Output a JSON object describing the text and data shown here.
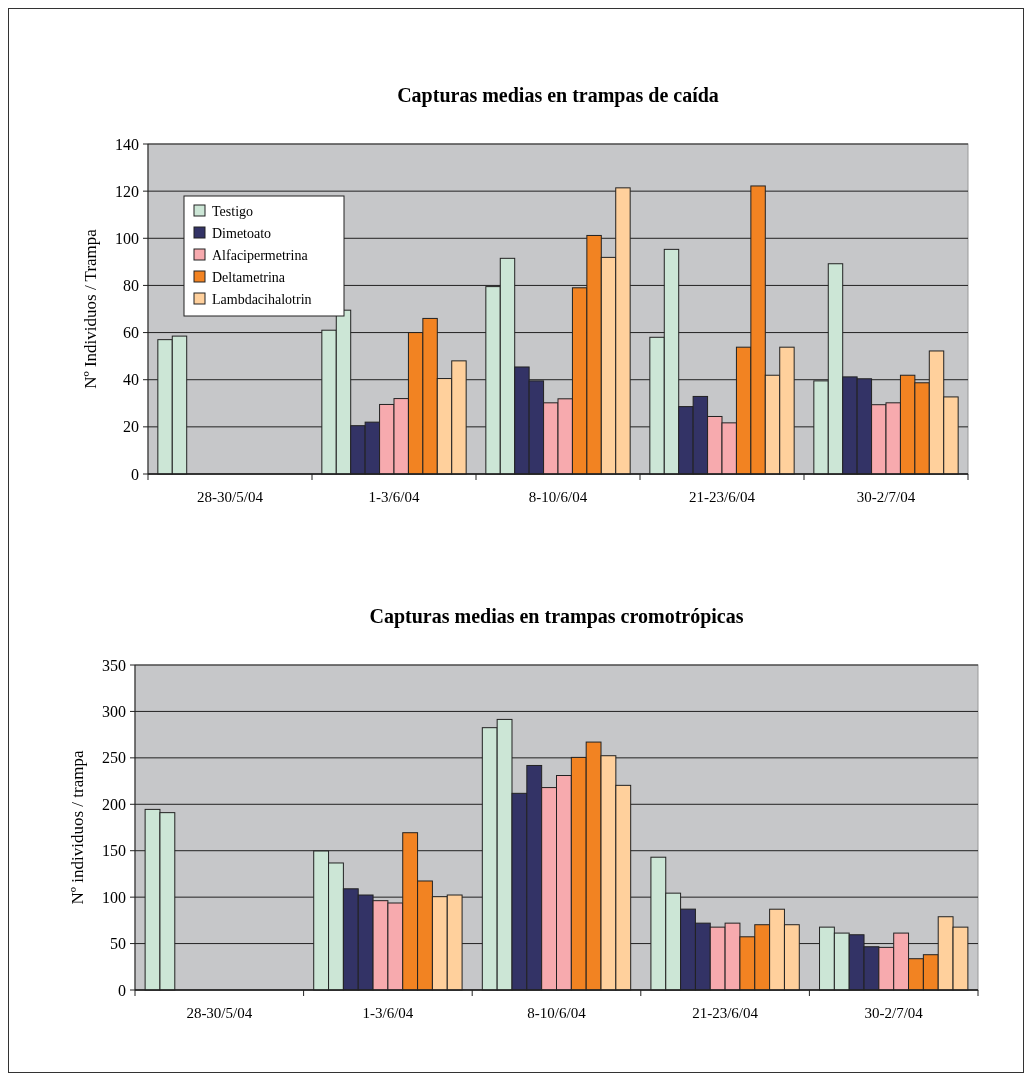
{
  "chart_data": [
    {
      "type": "bar",
      "title": "Capturas medias en trampas de caída",
      "ylabel": "Nº Individuos / Trampa",
      "categories": [
        "28-30/5/04",
        "1-3/6/04",
        "8-10/6/04",
        "21-23/6/04",
        "30-2/7/04"
      ],
      "ylim": [
        0,
        140
      ],
      "yticks": [
        0,
        20,
        40,
        60,
        80,
        100,
        120,
        140
      ],
      "grid": "y",
      "legend": "top left",
      "series": [
        {
          "name": "Testigo",
          "color": "#cce6d6",
          "values": [
            57,
            61,
            79.5,
            58,
            39.5
          ]
        },
        {
          "color": "#cce6d6",
          "values": [
            58.5,
            69.5,
            91.5,
            95.3,
            89.2
          ]
        },
        {
          "name": "Dimetoato",
          "color": "#333366",
          "values": [
            null,
            20.5,
            45.4,
            28.6,
            41.2
          ]
        },
        {
          "color": "#333366",
          "values": [
            null,
            22,
            39.5,
            32.9,
            40.4
          ]
        },
        {
          "name": "Alfacipermetrina",
          "color": "#f7aaae",
          "values": [
            null,
            29.5,
            30.2,
            24.4,
            29.4
          ]
        },
        {
          "color": "#f7aaae",
          "values": [
            null,
            32,
            31.9,
            21.7,
            30.2
          ]
        },
        {
          "name": "Deltametrina",
          "color": "#f28322",
          "values": [
            null,
            60,
            79,
            53.8,
            41.9
          ]
        },
        {
          "color": "#f28322",
          "values": [
            null,
            66,
            101.2,
            122.2,
            38.7
          ]
        },
        {
          "name": "Lambdacihalotrin",
          "color": "#ffd09c",
          "values": [
            null,
            40.5,
            91.9,
            41.9,
            52.2
          ]
        },
        {
          "color": "#ffd09c",
          "values": [
            null,
            48,
            121.4,
            53.8,
            32.7
          ]
        }
      ]
    },
    {
      "type": "bar",
      "title": "Capturas medias en trampas cromotrópicas",
      "ylabel": "Nº individuos / trampa",
      "categories": [
        "28-30/5/04",
        "1-3/6/04",
        "8-10/6/04",
        "21-23/6/04",
        "30-2/7/04"
      ],
      "ylim": [
        0,
        350
      ],
      "yticks": [
        0,
        50,
        100,
        150,
        200,
        250,
        300,
        350
      ],
      "grid": "y",
      "series": [
        {
          "color": "#cce6d6",
          "values": [
            194.5,
            149.7,
            282.5,
            143,
            67.7
          ]
        },
        {
          "color": "#cce6d6",
          "values": [
            191,
            136.8,
            291.4,
            104.3,
            61.3
          ]
        },
        {
          "color": "#333366",
          "values": [
            null,
            109,
            211.8,
            87.1,
            59.5
          ]
        },
        {
          "color": "#333366",
          "values": [
            null,
            102.3,
            241.8,
            72,
            46.6
          ]
        },
        {
          "color": "#f7aaae",
          "values": [
            null,
            96.2,
            218,
            67.7,
            45.9
          ]
        },
        {
          "color": "#f7aaae",
          "values": [
            null,
            93.7,
            231,
            72,
            61.3
          ]
        },
        {
          "color": "#f28322",
          "values": [
            null,
            169.4,
            250.5,
            57.3,
            33.7
          ]
        },
        {
          "color": "#f28322",
          "values": [
            null,
            117.4,
            267,
            70.3,
            38
          ]
        },
        {
          "color": "#ffd09c",
          "values": [
            null,
            100.5,
            252.3,
            87,
            78.9
          ]
        },
        {
          "color": "#ffd09c",
          "values": [
            null,
            102.3,
            220.4,
            70.3,
            67.7
          ]
        }
      ]
    }
  ]
}
